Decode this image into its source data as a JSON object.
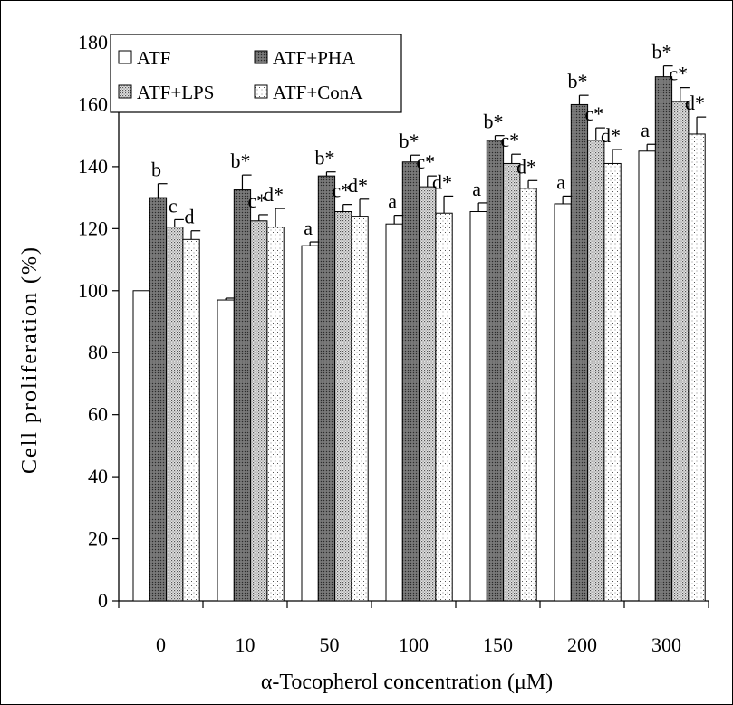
{
  "chart_data": {
    "type": "bar",
    "xlabel": "α-Tocopherol concentration (μM)",
    "ylabel": "Cell proliferation (%)",
    "ylim": [
      0,
      180
    ],
    "ytick_step": 20,
    "categories": [
      "0",
      "10",
      "50",
      "100",
      "150",
      "200",
      "300"
    ],
    "legend_placement": "top-left",
    "grid": false,
    "series": [
      {
        "name": "ATF",
        "pattern": "white",
        "values": [
          100,
          97,
          114.5,
          121.5,
          125.5,
          128,
          145
        ],
        "errors": [
          0,
          0.6,
          1.2,
          2.8,
          2.8,
          2.5,
          2.2
        ],
        "labels": [
          "",
          "",
          "a",
          "a",
          "a",
          "a",
          "a"
        ]
      },
      {
        "name": "ATF+PHA",
        "pattern": "dark-gray",
        "values": [
          130,
          132.5,
          137,
          141.5,
          148.5,
          160,
          169
        ],
        "errors": [
          4.5,
          4.8,
          1.3,
          2.2,
          1.5,
          3,
          3.5
        ],
        "labels": [
          "b",
          "b*",
          "b*",
          "b*",
          "b*",
          "b*",
          "b*"
        ]
      },
      {
        "name": "ATF+LPS",
        "pattern": "dense-dots",
        "values": [
          120.5,
          122.5,
          125.5,
          133.5,
          141,
          148.5,
          161
        ],
        "errors": [
          2.4,
          2,
          2.3,
          3.5,
          3,
          4,
          4.5
        ],
        "labels": [
          "c",
          "c*",
          "c*",
          "c*",
          "c*",
          "c*",
          "c*"
        ]
      },
      {
        "name": "ATF+ConA",
        "pattern": "sparse-dots",
        "values": [
          116.5,
          120.5,
          124,
          125,
          133,
          141,
          150.5
        ],
        "errors": [
          2.8,
          6,
          5.5,
          5.5,
          2.5,
          4.5,
          5.5
        ],
        "labels": [
          "d",
          "d*",
          "d*",
          "d*",
          "d*",
          "d*",
          "d*"
        ]
      }
    ]
  }
}
